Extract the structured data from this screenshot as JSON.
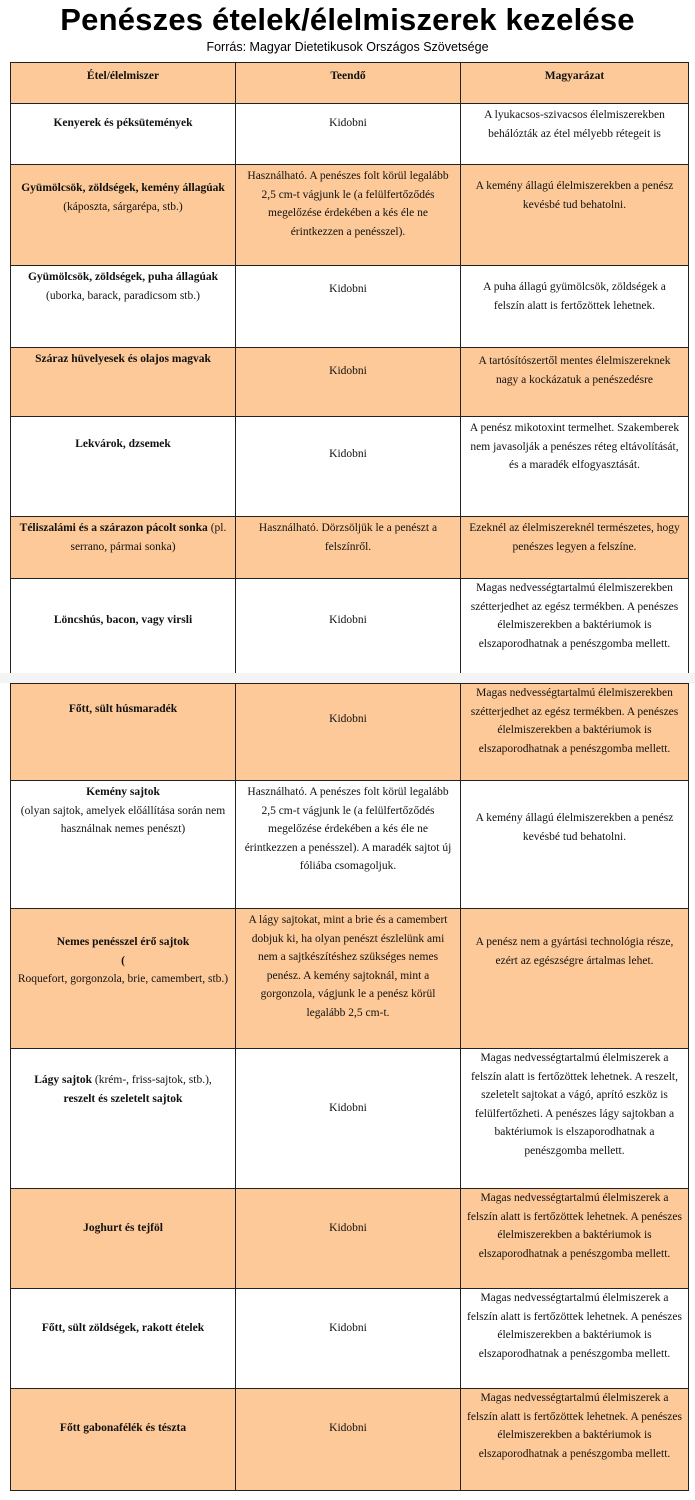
{
  "title": "Penészes ételek/élelmiszerek kezelése",
  "source": "Forrás: Magyar Dietetikusok Országos Szövetsége",
  "colors": {
    "row_highlight": "#fdc998",
    "border": "#222222"
  },
  "headers": [
    "Étel/élelmiszer",
    "Teendő",
    "Magyarázat"
  ],
  "rows": [
    {
      "food": [
        {
          "text": "Kenyerek és péksütemények",
          "bold": true
        }
      ],
      "todo": "Kidobni",
      "expl": "A lyukacsos-szivacsos élelmiszerekben behálózták az étel mélyebb rétegeit is"
    },
    {
      "food": [
        {
          "text": "Gyümölcsök, zöldségek, kemény állagúak",
          "bold": true
        },
        {
          "text": "(káposzta, sárgarépa, stb.)",
          "bold": false,
          "block": true
        }
      ],
      "todo": "Használható. A penészes  folt körül legalább 2,5 cm-t vágjunk le (a felülfertőződés megelőzése érdekében  a kés éle ne érintkezzen a penésszel).",
      "expl": "A kemény állagú élelmiszerekben a penész kevésbé tud behatolni."
    },
    {
      "food": [
        {
          "text": "Gyümölcsök, zöldségek, puha állagúak",
          "bold": true
        },
        {
          "text": " (uborka, barack, paradicsom stb.)",
          "bold": false
        }
      ],
      "todo": "Kidobni",
      "expl": "A puha állagú gyümölcsök, zöldségek a felszín alatt is fertőzöttek lehetnek."
    },
    {
      "food": [
        {
          "text": "Száraz hüvelyesek és olajos magvak",
          "bold": true
        }
      ],
      "todo": "Kidobni",
      "expl": "A tartósítószertől mentes élelmiszereknek nagy a kockázatuk a penészedésre"
    },
    {
      "food": [
        {
          "text": "Lekvárok, dzsemek",
          "bold": true
        }
      ],
      "todo": "Kidobni",
      "expl": "A penész mikotoxint termelhet. Szakemberek nem javasolják a penészes réteg eltávolítását, és a maradék elfogyasztását."
    },
    {
      "food": [
        {
          "text": "Téliszalámi és a szárazon pácolt sonka",
          "bold": true
        },
        {
          "text": " (pl. serrano, pármai sonka)",
          "bold": false
        }
      ],
      "todo": "Használható. Dörzsöljük le a penészt a felszínről.",
      "expl": "Ezeknél az élelmiszereknél természetes, hogy penészes legyen a felszíne."
    },
    {
      "food": [
        {
          "text": "Löncshús, bacon, vagy virsli",
          "bold": true
        }
      ],
      "todo": "Kidobni",
      "expl": "Magas nedvességtartalmú élelmiszerekben szétterjedhet az egész termékben. A penészes élelmiszerekben a baktériumok is elszaporodhatnak a penészgomba mellett."
    },
    {
      "food": [
        {
          "text": "Főtt, sült húsmaradék",
          "bold": true
        }
      ],
      "todo": "Kidobni",
      "expl": "Magas nedvességtartalmú élelmiszerekben szétterjedhet az egész termékben. A penészes élelmiszerekben a baktériumok is elszaporodhatnak a penészgomba mellett."
    },
    {
      "food": [
        {
          "text": "Kemény sajtok",
          "bold": true
        },
        {
          "text": "(olyan sajtok, amelyek előállítása során nem használnak nemes penészt)",
          "bold": false,
          "block": true
        }
      ],
      "todo": "Használható. A penészes  folt körül legalább 2,5 cm-t vágjunk le (a felülfertőződés megelőzése érdekében  a kés éle ne érintkezzen a penésszel). A maradék sajtot új fóliába csomagoljuk.",
      "expl": "A kemény állagú élelmiszerekben a penész kevésbé tud behatolni."
    },
    {
      "food": [
        {
          "text": "Nemes penésszel érő sajtok",
          "bold": true
        },
        {
          "text": "(",
          "bold": true,
          "block": true
        },
        {
          "text": "Roquefort, gorgonzola,  brie, camembert, stb.)",
          "bold": false
        }
      ],
      "todo": "A  lágy sajtokat, mint a brie és a camembert dobjuk ki, ha olyan penészt észlelünk ami nem a sajtkészítéshez szükséges nemes penész. A kemény sajtoknál, mint a gorgonzola, vágjunk le a penész körül legalább 2,5 cm-t.",
      "expl": "A penész nem a gyártási technológia része, ezért az egészségre ártalmas lehet."
    },
    {
      "food": [
        {
          "text": "Lágy sajtok",
          "bold": true
        },
        {
          "text": " (krém-, friss-sajtok, stb.),",
          "bold": false
        },
        {
          "text": "reszelt és szeletelt sajtok",
          "bold": true,
          "block": true
        }
      ],
      "todo": "Kidobni",
      "expl": "Magas nedvességtartalmú élelmiszerek a felszín alatt is fertőzöttek lehetnek. A reszelt, szeletelt sajtokat a vágó, aprító eszköz is felülfertőzheti. A penészes lágy sajtokban a baktériumok is elszaporodhatnak a penészgomba mellett."
    },
    {
      "food": [
        {
          "text": "Joghurt és tejföl",
          "bold": true
        }
      ],
      "todo": "Kidobni",
      "expl": "Magas nedvességtartalmú élelmiszerek a felszín alatt is fertőzöttek lehetnek. A penészes élelmiszerekben a baktériumok is elszaporodhatnak a penészgomba mellett."
    },
    {
      "food": [
        {
          "text": "Főtt, sült zöldségek, rakott ételek",
          "bold": true
        }
      ],
      "todo": "Kidobni",
      "expl": "Magas nedvességtartalmú élelmiszerek a felszín alatt is fertőzöttek lehetnek. A penészes élelmiszerekben a baktériumok is elszaporodhatnak a penészgomba mellett."
    },
    {
      "food": [
        {
          "text": "Főtt gabonafélék és tészta",
          "bold": true
        }
      ],
      "todo": "Kidobni",
      "expl": "Magas nedvességtartalmú élelmiszerek a felszín alatt is fertőzöttek lehetnek. A penészes élelmiszerekben a baktériumok is elszaporodhatnak a penészgomba mellett."
    }
  ]
}
